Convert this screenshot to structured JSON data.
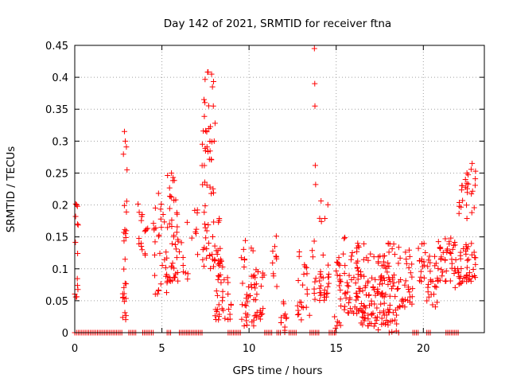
{
  "chart_data": {
    "type": "scatter",
    "title": "Day 142 of 2021, SRMTID for receiver ftna",
    "xlabel": "GPS time / hours",
    "ylabel": "SRMTID / TECUs",
    "xlim": [
      0,
      23.5
    ],
    "ylim": [
      0,
      0.45
    ],
    "xticks": [
      0,
      5,
      10,
      15,
      20
    ],
    "yticks": [
      0,
      0.05,
      0.1,
      0.15,
      0.2,
      0.25,
      0.3,
      0.35,
      0.4,
      0.45
    ],
    "ytick_labels": [
      "0",
      "0.05",
      "0.1",
      "0.15",
      "0.2",
      "0.25",
      "0.3",
      "0.35",
      "0.4",
      "0.45"
    ],
    "xtick_labels": [
      "0",
      "5",
      "10",
      "15",
      "20"
    ],
    "grid": true,
    "marker": "+",
    "series_color": "#ff0000",
    "clusters": [
      {
        "x": [
          0.0,
          0.2
        ],
        "y": [
          0.05,
          0.205
        ],
        "n": 14
      },
      {
        "x": [
          2.75,
          3.0
        ],
        "y": [
          0.02,
          0.315
        ],
        "n": 26
      },
      {
        "x": [
          3.6,
          3.9
        ],
        "y": [
          0.13,
          0.22
        ],
        "n": 10
      },
      {
        "x": [
          4.0,
          4.2
        ],
        "y": [
          0.12,
          0.165
        ],
        "n": 6
      },
      {
        "x": [
          4.5,
          5.3
        ],
        "y": [
          0.06,
          0.22
        ],
        "n": 32
      },
      {
        "x": [
          5.3,
          6.0
        ],
        "y": [
          0.08,
          0.25
        ],
        "n": 45
      },
      {
        "x": [
          6.1,
          6.5
        ],
        "y": [
          0.08,
          0.2
        ],
        "n": 8
      },
      {
        "x": [
          6.7,
          7.1
        ],
        "y": [
          0.12,
          0.2
        ],
        "n": 8
      },
      {
        "x": [
          7.3,
          8.0
        ],
        "y": [
          0.1,
          0.41
        ],
        "n": 55
      },
      {
        "x": [
          8.0,
          8.5
        ],
        "y": [
          0.02,
          0.18
        ],
        "n": 40
      },
      {
        "x": [
          8.5,
          9.0
        ],
        "y": [
          0.02,
          0.1
        ],
        "n": 12
      },
      {
        "x": [
          9.5,
          10.4
        ],
        "y": [
          0.01,
          0.15
        ],
        "n": 40
      },
      {
        "x": [
          10.4,
          10.9
        ],
        "y": [
          0.02,
          0.1
        ],
        "n": 18
      },
      {
        "x": [
          11.3,
          11.6
        ],
        "y": [
          0.07,
          0.17
        ],
        "n": 10
      },
      {
        "x": [
          11.8,
          12.3
        ],
        "y": [
          0.0,
          0.07
        ],
        "n": 12
      },
      {
        "x": [
          12.7,
          13.5
        ],
        "y": [
          0.02,
          0.13
        ],
        "n": 22
      },
      {
        "x": [
          13.6,
          13.9
        ],
        "y": [
          0.05,
          0.15
        ],
        "n": 8
      },
      {
        "x": [
          14.0,
          14.6
        ],
        "y": [
          0.05,
          0.21
        ],
        "n": 30
      },
      {
        "x": [
          14.9,
          15.3
        ],
        "y": [
          0.0,
          0.12
        ],
        "n": 22
      },
      {
        "x": [
          15.4,
          16.4
        ],
        "y": [
          0.03,
          0.15
        ],
        "n": 55
      },
      {
        "x": [
          16.4,
          17.4
        ],
        "y": [
          0.01,
          0.14
        ],
        "n": 60
      },
      {
        "x": [
          17.4,
          18.6
        ],
        "y": [
          0.0,
          0.14
        ],
        "n": 85
      },
      {
        "x": [
          18.6,
          19.4
        ],
        "y": [
          0.04,
          0.13
        ],
        "n": 30
      },
      {
        "x": [
          19.7,
          20.2
        ],
        "y": [
          0.08,
          0.14
        ],
        "n": 16
      },
      {
        "x": [
          20.2,
          20.8
        ],
        "y": [
          0.04,
          0.12
        ],
        "n": 24
      },
      {
        "x": [
          20.8,
          21.3
        ],
        "y": [
          0.08,
          0.16
        ],
        "n": 22
      },
      {
        "x": [
          21.3,
          21.8
        ],
        "y": [
          0.08,
          0.16
        ],
        "n": 16
      },
      {
        "x": [
          21.8,
          22.4
        ],
        "y": [
          0.07,
          0.24
        ],
        "n": 30
      },
      {
        "x": [
          22.4,
          23.0
        ],
        "y": [
          0.08,
          0.265
        ],
        "n": 45
      }
    ],
    "outliers": [
      {
        "x": 7.85,
        "y": 0.405
      },
      {
        "x": 7.9,
        "y": 0.385
      },
      {
        "x": 7.95,
        "y": 0.355
      },
      {
        "x": 8.05,
        "y": 0.328
      },
      {
        "x": 8.0,
        "y": 0.3
      },
      {
        "x": 13.75,
        "y": 0.445
      },
      {
        "x": 13.77,
        "y": 0.39
      },
      {
        "x": 13.78,
        "y": 0.355
      },
      {
        "x": 13.8,
        "y": 0.262
      },
      {
        "x": 13.82,
        "y": 0.232
      },
      {
        "x": 2.85,
        "y": 0.315
      },
      {
        "x": 2.9,
        "y": 0.3
      },
      {
        "x": 3.0,
        "y": 0.255
      },
      {
        "x": 5.55,
        "y": 0.25
      },
      {
        "x": 22.8,
        "y": 0.265
      },
      {
        "x": 22.5,
        "y": 0.25
      }
    ],
    "zero_spans": [
      [
        0.0,
        2.75
      ],
      [
        3.1,
        3.5
      ],
      [
        3.9,
        4.5
      ],
      [
        5.3,
        5.5
      ],
      [
        6.0,
        6.5
      ],
      [
        6.5,
        7.3
      ],
      [
        8.8,
        9.5
      ],
      [
        10.9,
        11.3
      ],
      [
        11.6,
        11.8
      ],
      [
        12.3,
        12.7
      ],
      [
        13.5,
        14.0
      ],
      [
        14.6,
        14.9
      ],
      [
        19.4,
        19.7
      ],
      [
        20.2,
        20.4
      ],
      [
        21.3,
        22.0
      ]
    ]
  }
}
